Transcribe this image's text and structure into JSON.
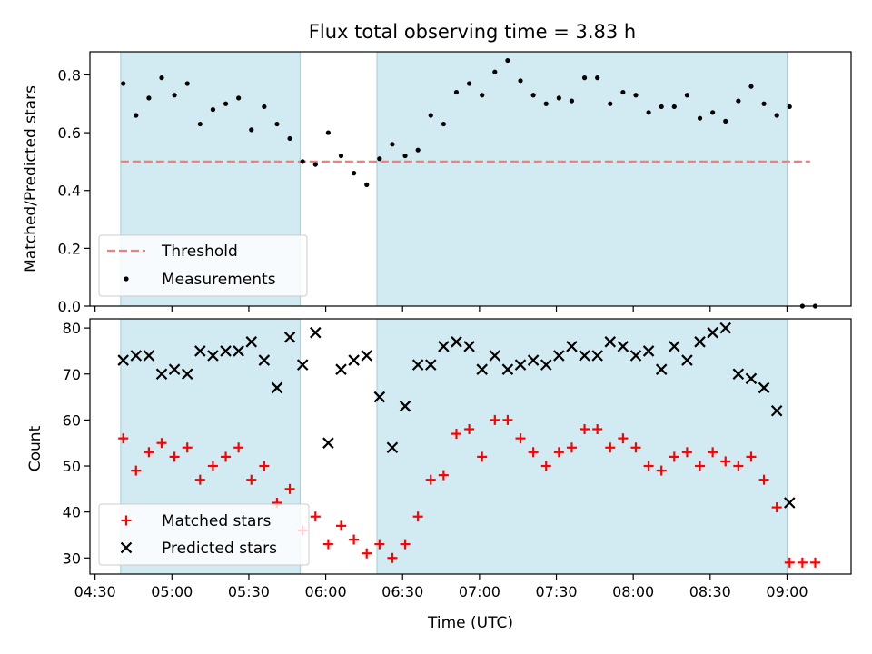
{
  "chart_data": [
    {
      "type": "scatter",
      "title": "Flux total observing time = 3.83 h",
      "xlabel": "",
      "ylabel": "Matched/Predicted stars",
      "xlim": [
        "04:28",
        "09:25"
      ],
      "ylim": [
        0,
        0.88
      ],
      "yticks": [
        0.0,
        0.2,
        0.4,
        0.6,
        0.8
      ],
      "ytick_labels": [
        "0.0",
        "0.2",
        "0.4",
        "0.6",
        "0.8"
      ],
      "shaded_intervals": [
        {
          "start": "04:40",
          "end": "05:50",
          "color": "#add8e6"
        },
        {
          "start": "06:20",
          "end": "09:00",
          "color": "#add8e6"
        }
      ],
      "threshold": {
        "value": 0.5,
        "x_start": "04:40",
        "x_end": "09:09",
        "color": "#f08080"
      },
      "legend": {
        "position": "lower-left",
        "entries": [
          "Threshold",
          "Measurements"
        ]
      },
      "series": [
        {
          "name": "Measurements",
          "marker": "dot",
          "color": "#000000",
          "x": [
            "04:41",
            "04:46",
            "04:51",
            "04:56",
            "05:01",
            "05:06",
            "05:11",
            "05:16",
            "05:21",
            "05:26",
            "05:31",
            "05:36",
            "05:41",
            "05:46",
            "05:51",
            "05:56",
            "06:01",
            "06:06",
            "06:11",
            "06:16",
            "06:21",
            "06:26",
            "06:31",
            "06:36",
            "06:41",
            "06:46",
            "06:51",
            "06:56",
            "07:01",
            "07:06",
            "07:11",
            "07:16",
            "07:21",
            "07:26",
            "07:31",
            "07:36",
            "07:41",
            "07:46",
            "07:51",
            "07:56",
            "08:01",
            "08:06",
            "08:11",
            "08:16",
            "08:21",
            "08:26",
            "08:31",
            "08:36",
            "08:41",
            "08:46",
            "08:51",
            "08:56",
            "09:01",
            "09:06",
            "09:11"
          ],
          "y": [
            0.77,
            0.66,
            0.72,
            0.79,
            0.73,
            0.77,
            0.63,
            0.68,
            0.7,
            0.72,
            0.61,
            0.69,
            0.63,
            0.58,
            0.5,
            0.49,
            0.6,
            0.52,
            0.46,
            0.42,
            0.51,
            0.56,
            0.52,
            0.54,
            0.66,
            0.63,
            0.74,
            0.77,
            0.73,
            0.81,
            0.85,
            0.78,
            0.73,
            0.7,
            0.72,
            0.71,
            0.79,
            0.79,
            0.7,
            0.74,
            0.73,
            0.67,
            0.69,
            0.69,
            0.73,
            0.65,
            0.67,
            0.64,
            0.71,
            0.76,
            0.7,
            0.66,
            0.69,
            0.0,
            0.0
          ]
        }
      ]
    },
    {
      "type": "scatter",
      "title": "",
      "xlabel": "Time (UTC)",
      "ylabel": "Count",
      "xlim": [
        "04:28",
        "09:25"
      ],
      "ylim": [
        26.5,
        82
      ],
      "yticks": [
        30,
        40,
        50,
        60,
        70,
        80
      ],
      "ytick_labels": [
        "30",
        "40",
        "50",
        "60",
        "70",
        "80"
      ],
      "xticks": [
        "04:30",
        "05:00",
        "05:30",
        "06:00",
        "06:30",
        "07:00",
        "07:30",
        "08:00",
        "08:30",
        "09:00"
      ],
      "shaded_intervals": [
        {
          "start": "04:40",
          "end": "05:50",
          "color": "#add8e6"
        },
        {
          "start": "06:20",
          "end": "09:00",
          "color": "#add8e6"
        }
      ],
      "legend": {
        "position": "lower-left",
        "entries": [
          "Matched stars",
          "Predicted stars"
        ]
      },
      "series": [
        {
          "name": "Matched stars",
          "marker": "plus",
          "color": "#ff0000",
          "x": [
            "04:41",
            "04:46",
            "04:51",
            "04:56",
            "05:01",
            "05:06",
            "05:11",
            "05:16",
            "05:21",
            "05:26",
            "05:31",
            "05:36",
            "05:41",
            "05:46",
            "05:51",
            "05:56",
            "06:01",
            "06:06",
            "06:11",
            "06:16",
            "06:21",
            "06:26",
            "06:31",
            "06:36",
            "06:41",
            "06:46",
            "06:51",
            "06:56",
            "07:01",
            "07:06",
            "07:11",
            "07:16",
            "07:21",
            "07:26",
            "07:31",
            "07:36",
            "07:41",
            "07:46",
            "07:51",
            "07:56",
            "08:01",
            "08:06",
            "08:11",
            "08:16",
            "08:21",
            "08:26",
            "08:31",
            "08:36",
            "08:41",
            "08:46",
            "08:51",
            "08:56",
            "09:01",
            "09:06",
            "09:11"
          ],
          "y": [
            56,
            49,
            53,
            55,
            52,
            54,
            47,
            50,
            52,
            54,
            47,
            50,
            42,
            45,
            36,
            39,
            33,
            37,
            34,
            31,
            33,
            30,
            33,
            39,
            47,
            48,
            57,
            58,
            52,
            60,
            60,
            56,
            53,
            50,
            53,
            54,
            58,
            58,
            54,
            56,
            54,
            50,
            49,
            52,
            53,
            50,
            53,
            51,
            50,
            52,
            47,
            41,
            29,
            29,
            29
          ]
        },
        {
          "name": "Predicted stars",
          "marker": "x",
          "color": "#000000",
          "x": [
            "04:41",
            "04:46",
            "04:51",
            "04:56",
            "05:01",
            "05:06",
            "05:11",
            "05:16",
            "05:21",
            "05:26",
            "05:31",
            "05:36",
            "05:41",
            "05:46",
            "05:51",
            "05:56",
            "06:01",
            "06:06",
            "06:11",
            "06:16",
            "06:21",
            "06:26",
            "06:31",
            "06:36",
            "06:41",
            "06:46",
            "06:51",
            "06:56",
            "07:01",
            "07:06",
            "07:11",
            "07:16",
            "07:21",
            "07:26",
            "07:31",
            "07:36",
            "07:41",
            "07:46",
            "07:51",
            "07:56",
            "08:01",
            "08:06",
            "08:11",
            "08:16",
            "08:21",
            "08:26",
            "08:31",
            "08:36",
            "08:41",
            "08:46",
            "08:51",
            "08:56",
            "09:01"
          ],
          "y": [
            73,
            74,
            74,
            70,
            71,
            70,
            75,
            74,
            75,
            75,
            77,
            73,
            67,
            78,
            72,
            79,
            55,
            71,
            73,
            74,
            65,
            54,
            63,
            72,
            72,
            76,
            77,
            76,
            71,
            74,
            71,
            72,
            73,
            72,
            74,
            76,
            74,
            74,
            77,
            76,
            74,
            75,
            71,
            76,
            73,
            77,
            79,
            80,
            70,
            69,
            67,
            62,
            42
          ]
        }
      ]
    }
  ]
}
